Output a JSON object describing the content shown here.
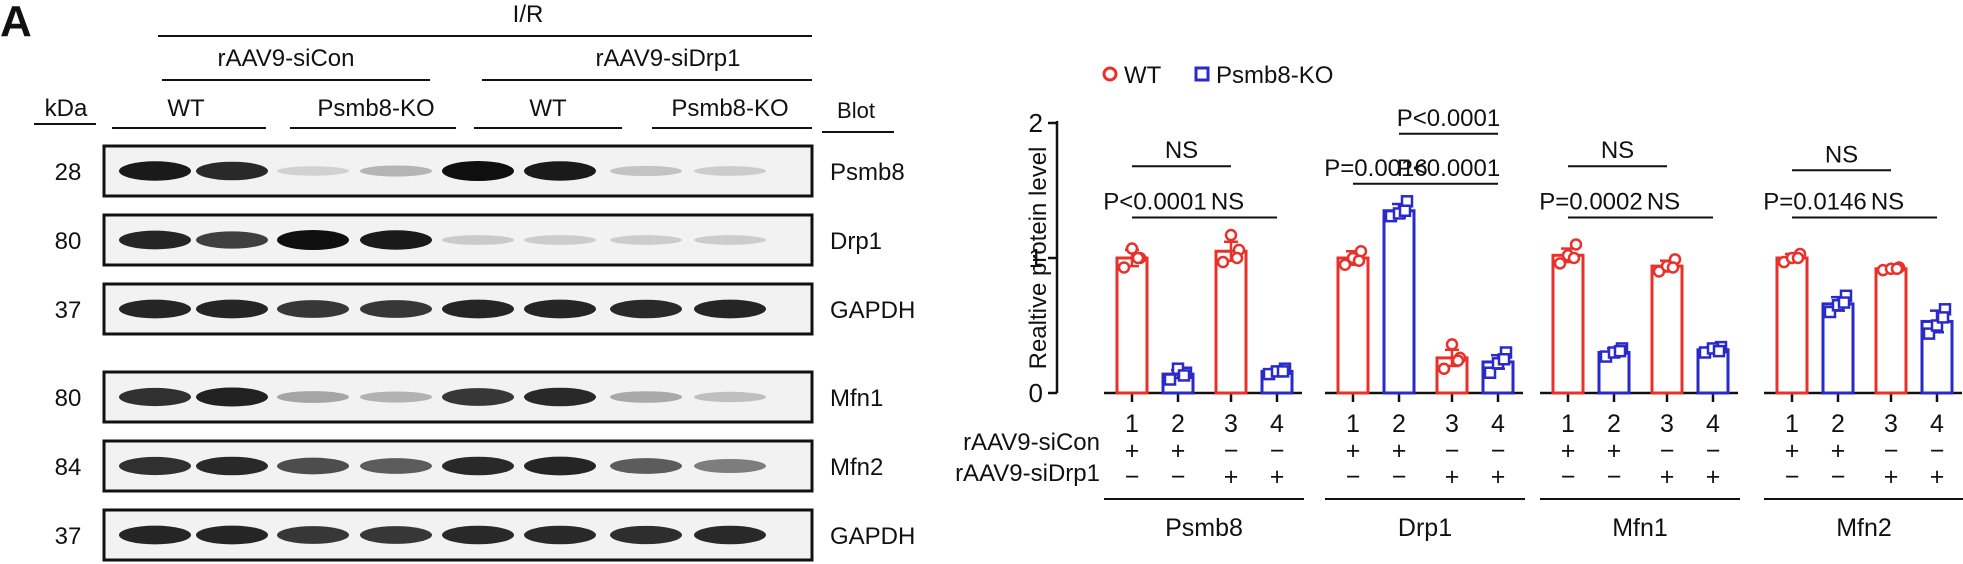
{
  "figure": {
    "panel_label": "A",
    "condition": "I/R",
    "treatments": [
      "rAAV9-siCon",
      "rAAV9-siDrp1"
    ],
    "genotypes": [
      "WT",
      "Psmb8-KO",
      "WT",
      "Psmb8-KO"
    ],
    "kda_header": "kDa",
    "blot_header": "Blot"
  },
  "blots": [
    {
      "name": "Psmb8",
      "kda": "28",
      "intensity": [
        0.95,
        0.88,
        0.12,
        0.25,
        1.0,
        0.95,
        0.18,
        0.14
      ]
    },
    {
      "name": "Drp1",
      "kda": "80",
      "intensity": [
        0.9,
        0.78,
        1.0,
        0.95,
        0.15,
        0.14,
        0.14,
        0.14
      ]
    },
    {
      "name": "GAPDH",
      "kda": "37",
      "intensity": [
        0.9,
        0.9,
        0.82,
        0.82,
        0.9,
        0.9,
        0.88,
        0.9
      ]
    },
    {
      "name": "Mfn1",
      "kda": "80",
      "intensity": [
        0.85,
        0.92,
        0.32,
        0.26,
        0.82,
        0.88,
        0.3,
        0.2
      ]
    },
    {
      "name": "Mfn2",
      "kda": "84",
      "intensity": [
        0.85,
        0.88,
        0.72,
        0.65,
        0.88,
        0.9,
        0.65,
        0.5
      ]
    },
    {
      "name": "GAPDH",
      "kda": "37",
      "intensity": [
        0.9,
        0.9,
        0.82,
        0.82,
        0.88,
        0.88,
        0.86,
        0.88
      ]
    }
  ],
  "chart_data": {
    "type": "bar",
    "ylabel": "Realtive protein level",
    "ylim": [
      0,
      2
    ],
    "yticks": [
      0,
      1,
      2
    ],
    "legend": {
      "placement": "top-left",
      "entries": [
        {
          "name": "WT",
          "color": "#e8312a",
          "marker": "circle"
        },
        {
          "name": "Psmb8-KO",
          "color": "#2a2ac8",
          "marker": "square"
        }
      ]
    },
    "bar_numbers": [
      "1",
      "2",
      "3",
      "4"
    ],
    "row_labels": [
      "rAAV9-siCon",
      "rAAV9-siDrp1"
    ],
    "siCon_signs": [
      "+",
      "+",
      "−",
      "−"
    ],
    "siDrp1_signs": [
      "−",
      "−",
      "+",
      "+"
    ],
    "groups": [
      {
        "name": "Psmb8",
        "bars": [
          {
            "genotype": "WT",
            "value": 1.0,
            "sem": 0.06,
            "points": [
              0.93,
              1.0,
              1.07,
              1.0
            ]
          },
          {
            "genotype": "Psmb8-KO",
            "value": 0.14,
            "sem": 0.03,
            "points": [
              0.1,
              0.15,
              0.18,
              0.13
            ]
          },
          {
            "genotype": "WT",
            "value": 1.05,
            "sem": 0.07,
            "points": [
              0.97,
              1.06,
              1.17,
              1.0
            ]
          },
          {
            "genotype": "Psmb8-KO",
            "value": 0.16,
            "sem": 0.02,
            "points": [
              0.14,
              0.18,
              0.16,
              0.16
            ]
          }
        ],
        "annotations": [
          {
            "text": "NS",
            "from": 0,
            "to": 2,
            "y": 1.68
          },
          {
            "text": "P<0.0001",
            "from": 0,
            "to": 1,
            "y": 1.3
          },
          {
            "text": "NS",
            "from": 1,
            "to": 3,
            "y": 1.3
          }
        ]
      },
      {
        "name": "Drp1",
        "bars": [
          {
            "genotype": "WT",
            "value": 1.0,
            "sem": 0.05,
            "points": [
              0.95,
              1.05,
              1.0,
              0.98
            ]
          },
          {
            "genotype": "Psmb8-KO",
            "value": 1.35,
            "sem": 0.05,
            "points": [
              1.31,
              1.42,
              1.33,
              1.35
            ]
          },
          {
            "genotype": "WT",
            "value": 0.26,
            "sem": 0.06,
            "points": [
              0.18,
              0.26,
              0.36,
              0.24
            ]
          },
          {
            "genotype": "Psmb8-KO",
            "value": 0.23,
            "sem": 0.05,
            "points": [
              0.15,
              0.3,
              0.22,
              0.25
            ]
          }
        ],
        "annotations": [
          {
            "text": "P<0.0001",
            "from": 1,
            "to": 3,
            "y": 1.92
          },
          {
            "text": "P=0.0016",
            "from": 0,
            "to": 1,
            "y": 1.55
          },
          {
            "text": "P<0.0001",
            "from": 1,
            "to": 3,
            "y": 1.55
          }
        ]
      },
      {
        "name": "Mfn1",
        "bars": [
          {
            "genotype": "WT",
            "value": 1.02,
            "sem": 0.05,
            "points": [
              0.96,
              1.1,
              1.02,
              1.0
            ]
          },
          {
            "genotype": "Psmb8-KO",
            "value": 0.3,
            "sem": 0.03,
            "points": [
              0.27,
              0.33,
              0.3,
              0.31
            ]
          },
          {
            "genotype": "WT",
            "value": 0.94,
            "sem": 0.04,
            "points": [
              0.9,
              0.99,
              0.94,
              0.93
            ]
          },
          {
            "genotype": "Psmb8-KO",
            "value": 0.32,
            "sem": 0.02,
            "points": [
              0.3,
              0.34,
              0.33,
              0.31
            ]
          }
        ],
        "annotations": [
          {
            "text": "NS",
            "from": 0,
            "to": 2,
            "y": 1.68
          },
          {
            "text": "P=0.0002",
            "from": 0,
            "to": 1,
            "y": 1.3
          },
          {
            "text": "NS",
            "from": 1,
            "to": 3,
            "y": 1.3
          }
        ]
      },
      {
        "name": "Mfn2",
        "bars": [
          {
            "genotype": "WT",
            "value": 1.0,
            "sem": 0.03,
            "points": [
              0.97,
              1.03,
              1.0,
              1.0
            ]
          },
          {
            "genotype": "Psmb8-KO",
            "value": 0.66,
            "sem": 0.05,
            "points": [
              0.6,
              0.72,
              0.65,
              0.67
            ]
          },
          {
            "genotype": "WT",
            "value": 0.92,
            "sem": 0.01,
            "points": [
              0.91,
              0.93,
              0.92,
              0.92
            ]
          },
          {
            "genotype": "Psmb8-KO",
            "value": 0.53,
            "sem": 0.08,
            "points": [
              0.44,
              0.62,
              0.5,
              0.56
            ]
          }
        ],
        "annotations": [
          {
            "text": "NS",
            "from": 0,
            "to": 2,
            "y": 1.65
          },
          {
            "text": "P=0.0146",
            "from": 0,
            "to": 1,
            "y": 1.3
          },
          {
            "text": "NS",
            "from": 1,
            "to": 3,
            "y": 1.3
          }
        ]
      }
    ]
  }
}
